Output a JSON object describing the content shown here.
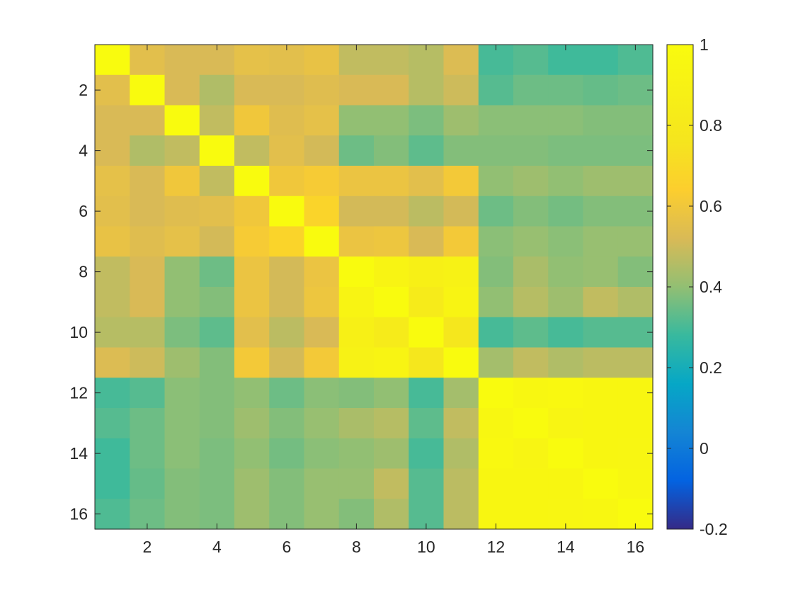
{
  "chart_data": {
    "type": "heatmap",
    "title": "",
    "xlabel": "",
    "ylabel": "",
    "rows": 16,
    "cols": 16,
    "x_ticks": [
      2,
      4,
      6,
      8,
      10,
      12,
      14,
      16
    ],
    "y_ticks": [
      2,
      4,
      6,
      8,
      10,
      12,
      14,
      16
    ],
    "xlim": [
      0.5,
      16.5
    ],
    "ylim": [
      0.5,
      16.5
    ],
    "y_direction": "reverse",
    "colorbar": {
      "range": [
        -0.2,
        1
      ],
      "ticks": [
        "1",
        "0.8",
        "0.6",
        "0.4",
        "0.2",
        "0",
        "-0.2"
      ],
      "colormap": "parula"
    },
    "values": [
      [
        1.0,
        0.55,
        0.52,
        0.52,
        0.56,
        0.55,
        0.57,
        0.48,
        0.48,
        0.46,
        0.53,
        0.3,
        0.32,
        0.29,
        0.29,
        0.31
      ],
      [
        0.55,
        1.0,
        0.52,
        0.45,
        0.52,
        0.52,
        0.54,
        0.52,
        0.52,
        0.46,
        0.5,
        0.32,
        0.35,
        0.35,
        0.34,
        0.35
      ],
      [
        0.52,
        0.52,
        1.0,
        0.48,
        0.6,
        0.54,
        0.56,
        0.4,
        0.4,
        0.37,
        0.42,
        0.39,
        0.39,
        0.39,
        0.38,
        0.38
      ],
      [
        0.52,
        0.45,
        0.48,
        1.0,
        0.48,
        0.55,
        0.51,
        0.35,
        0.38,
        0.33,
        0.38,
        0.38,
        0.38,
        0.37,
        0.37,
        0.37
      ],
      [
        0.56,
        0.52,
        0.6,
        0.48,
        1.0,
        0.6,
        0.62,
        0.58,
        0.58,
        0.55,
        0.61,
        0.4,
        0.42,
        0.4,
        0.42,
        0.42
      ],
      [
        0.55,
        0.52,
        0.54,
        0.55,
        0.6,
        1.0,
        0.67,
        0.51,
        0.51,
        0.47,
        0.51,
        0.35,
        0.38,
        0.36,
        0.38,
        0.38
      ],
      [
        0.57,
        0.54,
        0.56,
        0.51,
        0.62,
        0.67,
        1.0,
        0.58,
        0.59,
        0.52,
        0.61,
        0.39,
        0.41,
        0.39,
        0.41,
        0.41
      ],
      [
        0.48,
        0.52,
        0.4,
        0.35,
        0.58,
        0.51,
        0.58,
        1.0,
        0.92,
        0.88,
        0.9,
        0.38,
        0.44,
        0.4,
        0.41,
        0.38
      ],
      [
        0.48,
        0.52,
        0.4,
        0.38,
        0.58,
        0.51,
        0.59,
        0.92,
        1.0,
        0.82,
        0.92,
        0.4,
        0.46,
        0.42,
        0.48,
        0.45
      ],
      [
        0.46,
        0.46,
        0.37,
        0.33,
        0.55,
        0.47,
        0.52,
        0.88,
        0.82,
        1.0,
        0.78,
        0.3,
        0.33,
        0.3,
        0.32,
        0.32
      ],
      [
        0.53,
        0.5,
        0.42,
        0.38,
        0.61,
        0.51,
        0.61,
        0.9,
        0.92,
        0.78,
        1.0,
        0.43,
        0.48,
        0.45,
        0.47,
        0.47
      ],
      [
        0.3,
        0.32,
        0.39,
        0.38,
        0.4,
        0.35,
        0.39,
        0.38,
        0.4,
        0.3,
        0.43,
        1.0,
        0.96,
        0.97,
        0.95,
        0.95
      ],
      [
        0.32,
        0.35,
        0.39,
        0.38,
        0.42,
        0.38,
        0.41,
        0.44,
        0.46,
        0.33,
        0.48,
        0.96,
        1.0,
        0.93,
        0.95,
        0.95
      ],
      [
        0.29,
        0.35,
        0.39,
        0.37,
        0.4,
        0.36,
        0.39,
        0.4,
        0.42,
        0.3,
        0.45,
        0.97,
        0.93,
        1.0,
        0.95,
        0.94
      ],
      [
        0.29,
        0.34,
        0.38,
        0.37,
        0.42,
        0.38,
        0.41,
        0.41,
        0.48,
        0.32,
        0.47,
        0.95,
        0.95,
        0.95,
        1.0,
        0.96
      ],
      [
        0.31,
        0.35,
        0.38,
        0.37,
        0.42,
        0.38,
        0.41,
        0.38,
        0.45,
        0.32,
        0.47,
        0.95,
        0.95,
        0.94,
        0.96,
        1.0
      ]
    ]
  }
}
